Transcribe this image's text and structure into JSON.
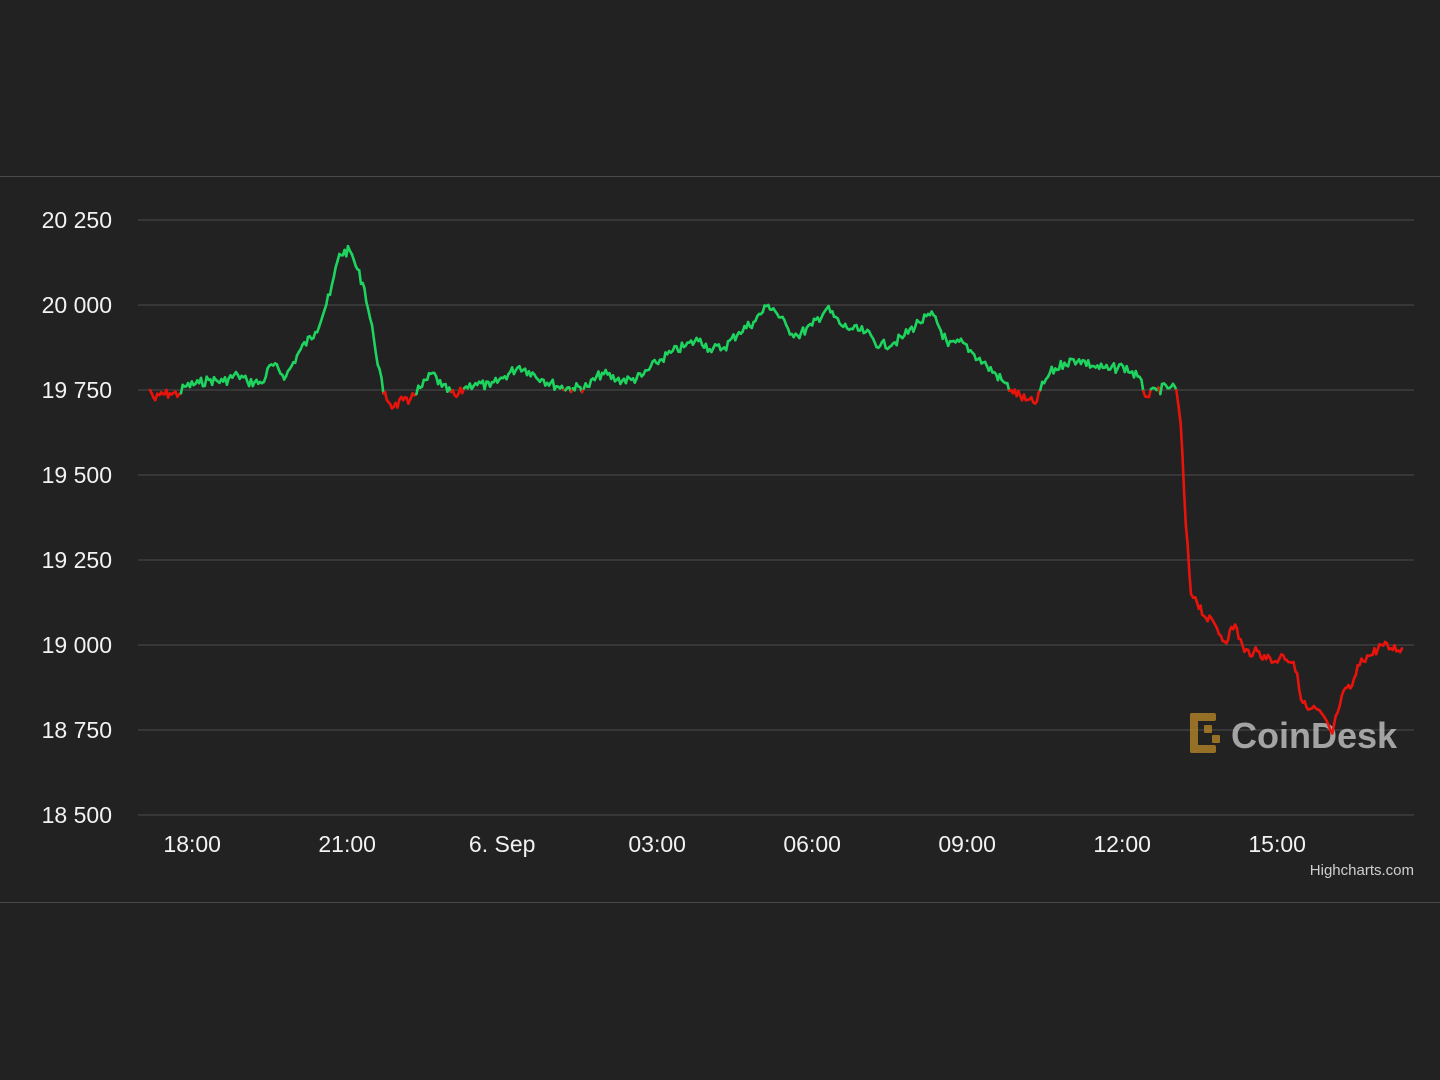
{
  "colors": {
    "background": "#222222",
    "grid": "#444444",
    "up": "#1fd45e",
    "down": "#e8140c",
    "watermark_mark": "#b8862a"
  },
  "watermark": {
    "text": "CoinDesk"
  },
  "credits": "Highcharts.com",
  "chart_data": {
    "type": "line",
    "title": "",
    "xlabel": "",
    "ylabel": "",
    "grid": true,
    "legend": "none",
    "baseline": 19750,
    "ylim": [
      18500,
      20250
    ],
    "xlim": [
      "2022-09-05 17:11",
      "2022-09-06 17:25"
    ],
    "y_ticks": [
      "20 250",
      "20 000",
      "19 750",
      "19 500",
      "19 250",
      "19 000",
      "18 750",
      "18 500"
    ],
    "y_tick_values": [
      20250,
      20000,
      19750,
      19500,
      19250,
      19000,
      18750,
      18500
    ],
    "x_ticks": [
      "18:00",
      "21:00",
      "6. Sep",
      "03:00",
      "06:00",
      "09:00",
      "12:00",
      "15:00"
    ],
    "x_tick_times": [
      "2022-09-05 18:00",
      "2022-09-05 21:00",
      "2022-09-06 00:00",
      "2022-09-06 03:00",
      "2022-09-06 06:00",
      "2022-09-06 09:00",
      "2022-09-06 12:00",
      "2022-09-06 15:00"
    ],
    "series": [
      {
        "x": [
          "2022-09-05 17:11",
          "2022-09-05 17:17",
          "2022-09-05 17:22",
          "2022-09-05 17:34",
          "2022-09-05 17:45",
          "2022-09-05 17:51",
          "2022-09-05 18:08",
          "2022-09-05 18:19",
          "2022-09-05 18:36",
          "2022-09-05 18:53",
          "2022-09-05 19:04",
          "2022-09-05 19:21",
          "2022-09-05 19:32",
          "2022-09-05 19:49",
          "2022-09-05 20:06",
          "2022-09-05 20:23",
          "2022-09-05 20:40",
          "2022-09-05 20:51",
          "2022-09-05 21:03",
          "2022-09-05 21:08",
          "2022-09-05 21:20",
          "2022-09-05 21:31",
          "2022-09-05 21:42",
          "2022-09-05 21:54",
          "2022-09-05 22:05",
          "2022-09-05 22:11",
          "2022-09-05 22:16",
          "2022-09-05 22:27",
          "2022-09-05 22:39",
          "2022-09-05 22:50",
          "2022-09-05 23:07",
          "2022-09-05 23:18",
          "2022-09-05 23:29",
          "2022-09-05 23:46",
          "2022-09-06 00:03",
          "2022-09-06 00:20",
          "2022-09-06 00:31",
          "2022-09-06 00:48",
          "2022-09-06 01:05",
          "2022-09-06 01:22",
          "2022-09-06 01:39",
          "2022-09-06 01:56",
          "2022-09-06 02:13",
          "2022-09-06 02:30",
          "2022-09-06 02:42",
          "2022-09-06 02:59",
          "2022-09-06 03:16",
          "2022-09-06 03:33",
          "2022-09-06 03:50",
          "2022-09-06 04:01",
          "2022-09-06 04:18",
          "2022-09-06 04:35",
          "2022-09-06 04:52",
          "2022-09-06 05:09",
          "2022-09-06 05:15",
          "2022-09-06 05:32",
          "2022-09-06 05:43",
          "2022-09-06 06:00",
          "2022-09-06 06:17",
          "2022-09-06 06:34",
          "2022-09-06 06:45",
          "2022-09-06 07:02",
          "2022-09-06 07:19",
          "2022-09-06 07:36",
          "2022-09-06 07:47",
          "2022-09-06 08:04",
          "2022-09-06 08:21",
          "2022-09-06 08:38",
          "2022-09-06 08:55",
          "2022-09-06 09:06",
          "2022-09-06 09:23",
          "2022-09-06 09:40",
          "2022-09-06 09:51",
          "2022-09-06 10:08",
          "2022-09-06 10:19",
          "2022-09-06 10:25",
          "2022-09-06 10:36",
          "2022-09-06 10:53",
          "2022-09-06 11:10",
          "2022-09-06 11:27",
          "2022-09-06 11:44",
          "2022-09-06 12:01",
          "2022-09-06 12:18",
          "2022-09-06 12:29",
          "2022-09-06 12:40",
          "2022-09-06 12:57",
          "2022-09-06 13:03",
          "2022-09-06 13:08",
          "2022-09-06 13:14",
          "2022-09-06 13:20",
          "2022-09-06 13:25",
          "2022-09-06 13:37",
          "2022-09-06 13:48",
          "2022-09-06 13:59",
          "2022-09-06 14:11",
          "2022-09-06 14:22",
          "2022-09-06 14:33",
          "2022-09-06 14:45",
          "2022-09-06 14:56",
          "2022-09-06 15:07",
          "2022-09-06 15:19",
          "2022-09-06 15:30",
          "2022-09-06 15:36",
          "2022-09-06 15:47",
          "2022-09-06 16:04",
          "2022-09-06 16:10",
          "2022-09-06 16:15",
          "2022-09-06 16:27",
          "2022-09-06 16:38",
          "2022-09-06 16:49",
          "2022-09-06 17:01",
          "2022-09-06 17:12",
          "2022-09-06 17:25"
        ],
        "values": [
          19750,
          19720,
          19735,
          19740,
          19738,
          19760,
          19770,
          19780,
          19775,
          19795,
          19775,
          19770,
          19825,
          19790,
          19870,
          19920,
          20030,
          20150,
          20160,
          20130,
          20050,
          19900,
          19740,
          19700,
          19720,
          19710,
          19740,
          19760,
          19800,
          19760,
          19730,
          19760,
          19770,
          19760,
          19790,
          19820,
          19805,
          19780,
          19760,
          19755,
          19760,
          19800,
          19780,
          19780,
          19790,
          19830,
          19860,
          19880,
          19900,
          19870,
          19875,
          19920,
          19950,
          20000,
          19990,
          19930,
          19910,
          19940,
          19990,
          19940,
          19930,
          19920,
          19880,
          19890,
          19910,
          19950,
          19970,
          19880,
          19890,
          19860,
          19820,
          19780,
          19750,
          19720,
          19710,
          19750,
          19800,
          19830,
          19840,
          19820,
          19810,
          19820,
          19790,
          19730,
          19750,
          19760,
          19750,
          19650,
          19350,
          19150,
          19140,
          19080,
          19060,
          19010,
          19060,
          18980,
          18980,
          18970,
          18950,
          18970,
          18950,
          18830,
          18810,
          18810,
          18740,
          18800,
          18850,
          18880,
          18960,
          18970,
          19000,
          18990,
          18990
        ],
        "up_color": "#1fd45e",
        "down_color": "#e8140c"
      }
    ]
  }
}
